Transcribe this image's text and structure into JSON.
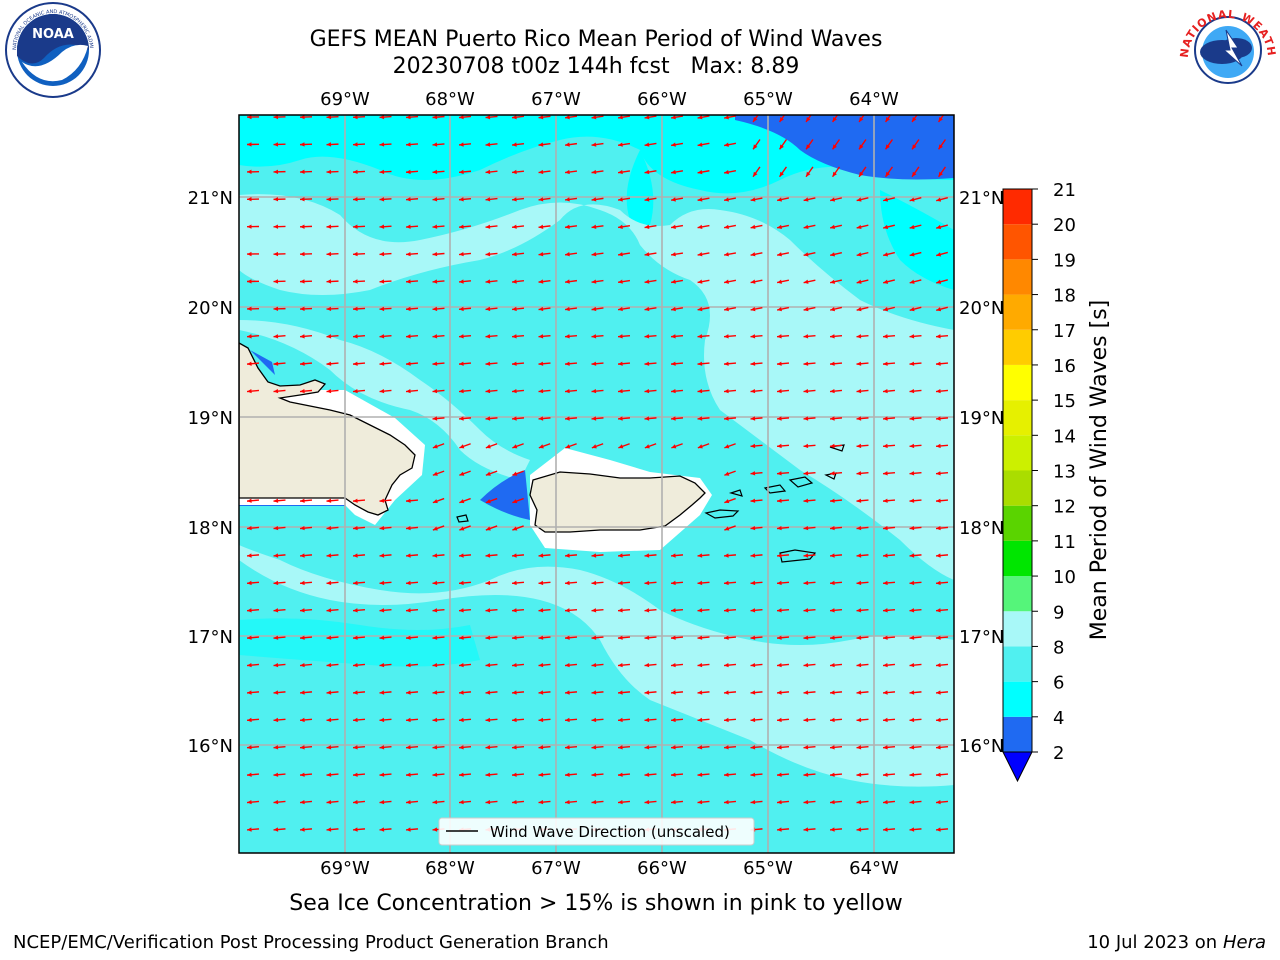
{
  "header": {
    "title_line1": "GEFS MEAN Puerto Rico Mean Period of Wind Waves",
    "title_line2": "20230708 t00z 144h fcst   Max: 8.89"
  },
  "logos": {
    "left": "noaa-logo",
    "right": "national-weather-service-logo",
    "left_text": "NOAA",
    "left_ring_text": "NATIONAL OCEANIC AND ATMOSPHERIC ADMINISTRATION · U.S. DEPARTMENT OF COMMERCE",
    "right_ring_text": "NATIONAL WEATHER SERVICE"
  },
  "map": {
    "lon_labels": [
      "69°W",
      "68°W",
      "67°W",
      "66°W",
      "65°W",
      "64°W"
    ],
    "lat_labels": [
      "21°N",
      "20°N",
      "19°N",
      "18°N",
      "17°N",
      "16°N"
    ],
    "legend_label": "Wind Wave Direction (unscaled)",
    "arrow_color": "#ff0000",
    "land_color": "#efecdb",
    "grid_color": "#b0b0b0"
  },
  "colorbar": {
    "label": "Mean Period of Wind Waves [s]",
    "ticks": [
      "2",
      "4",
      "6",
      "8",
      "9",
      "10",
      "11",
      "12",
      "13",
      "14",
      "15",
      "16",
      "17",
      "18",
      "19",
      "20",
      "21"
    ],
    "colors": [
      "#1f6af2",
      "#00ffff",
      "#50f0f0",
      "#a8f8f8",
      "#55f57a",
      "#00e600",
      "#5ad400",
      "#aadd00",
      "#ccf000",
      "#e6f000",
      "#ffff00",
      "#ffcc00",
      "#ffaa00",
      "#ff8800",
      "#ff5500",
      "#ff2a00"
    ],
    "under_color": "#0000ff"
  },
  "footer": {
    "caption": "Sea Ice Concentration > 15% is shown in pink to yellow",
    "left": "NCEP/EMC/Verification Post Processing Product Generation Branch",
    "date": "10 Jul 2023 on",
    "machine": "Hera"
  }
}
